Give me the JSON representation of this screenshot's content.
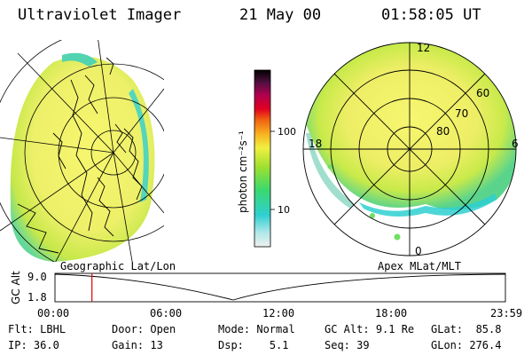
{
  "header": {
    "instrument": "Ultraviolet Imager",
    "date": "21 May 00",
    "time": "01:58:05 UT"
  },
  "colorbar": {
    "unit_label": "photon cm⁻²s⁻¹",
    "ticks": [
      "100",
      "10"
    ]
  },
  "geo_panel": {
    "label": "Geographic Lat/Lon"
  },
  "apex_panel": {
    "label": "Apex MLat/MLT",
    "mlt_labels": [
      "12",
      "18",
      "6",
      "0"
    ],
    "lat_labels": [
      "60",
      "70",
      "80"
    ]
  },
  "timeline": {
    "ylabel": "GC Alt",
    "yticks": [
      "9.0",
      "1.8"
    ],
    "xticks": [
      "00:00",
      "06:00",
      "12:00",
      "18:00",
      "23:59"
    ],
    "current_time_hours": 1.97
  },
  "info": {
    "flt": {
      "label": "Flt:",
      "value": "LBHL"
    },
    "ip": {
      "label": "IP:",
      "value": "36.0"
    },
    "door": {
      "label": "Door:",
      "value": "Open"
    },
    "gain": {
      "label": "Gain:",
      "value": "13"
    },
    "mode": {
      "label": "Mode:",
      "value": "Normal"
    },
    "dsp": {
      "label": "Dsp:",
      "value": "5.1"
    },
    "gcalt": {
      "label": "GC Alt:",
      "value": "9.1 Re"
    },
    "seq": {
      "label": "Seq:",
      "value": "39"
    },
    "glat": {
      "label": "GLat:",
      "value": "85.8"
    },
    "glon": {
      "label": "GLon:",
      "value": "276.4"
    }
  },
  "colors": {
    "bright": "#f0f07a",
    "mid": "#a8e03a",
    "low": "#2ecfd0",
    "marker": "#e00000"
  }
}
